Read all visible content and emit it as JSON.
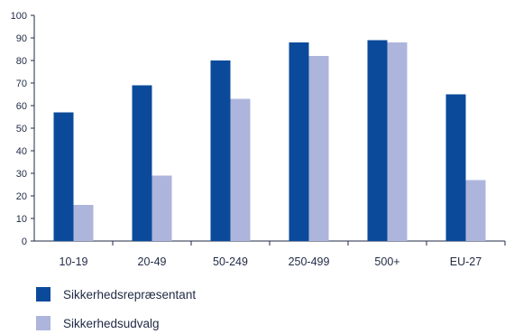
{
  "chart_data": {
    "type": "bar",
    "categories": [
      "10-19",
      "20-49",
      "50-249",
      "250-499",
      "500+",
      "EU-27"
    ],
    "series": [
      {
        "name": "Sikkerhedsrepræsentant",
        "color": "#0b4a9b",
        "values": [
          57,
          69,
          80,
          88,
          89,
          65
        ]
      },
      {
        "name": "Sikkerhedsudvalg",
        "color": "#adb5dc",
        "values": [
          16,
          29,
          63,
          82,
          88,
          27
        ]
      }
    ],
    "ylim": [
      0,
      100
    ],
    "yticks": [
      "0",
      "10",
      "20",
      "30",
      "40",
      "50",
      "60",
      "70",
      "80",
      "90",
      "100"
    ],
    "grid": false,
    "legend_position": "bottom-left"
  }
}
